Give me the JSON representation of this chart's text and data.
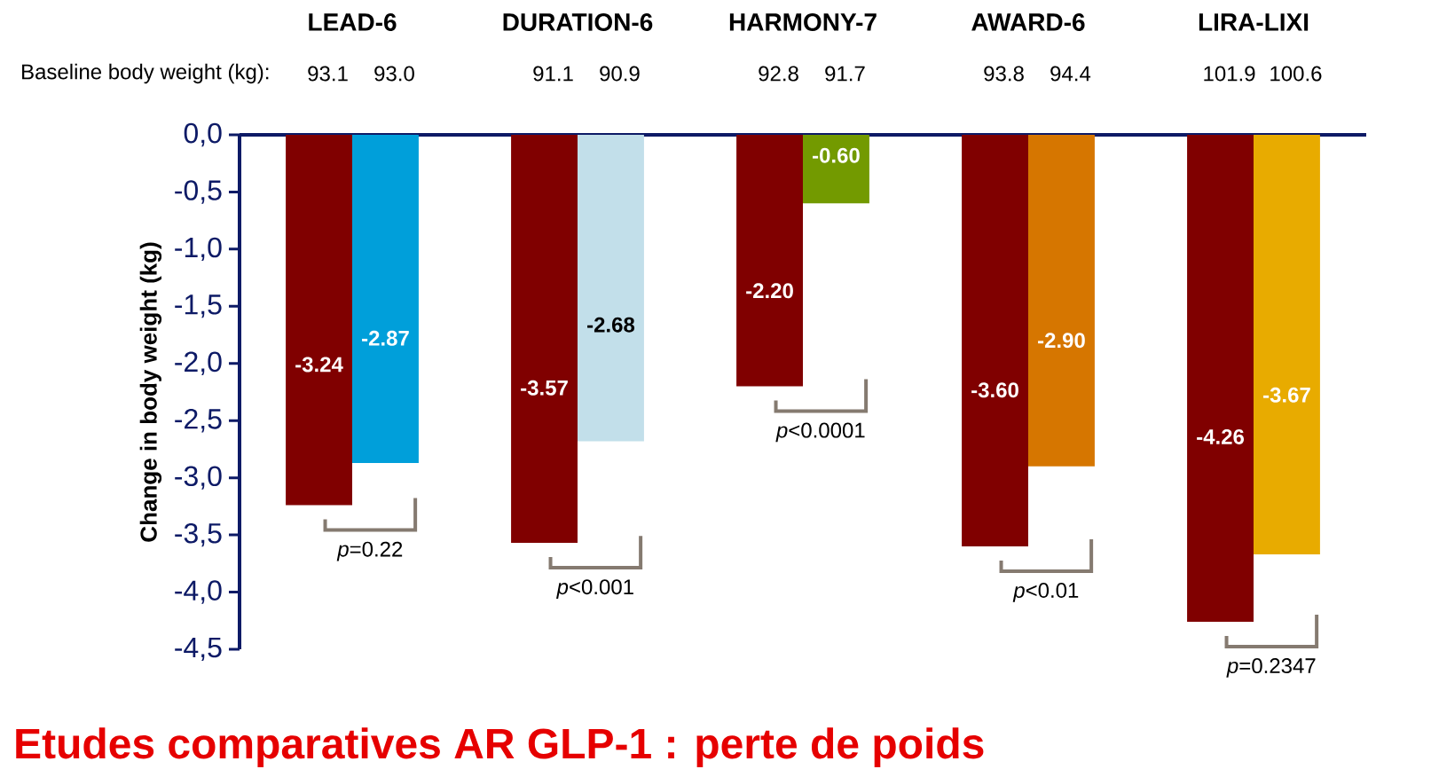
{
  "chart_data": {
    "type": "bar",
    "title": "Etudes comparatives AR GLP-1 : perte de poids",
    "ylabel": "Change in body weight (kg)",
    "categories": [
      "LEAD-6",
      "DURATION-6",
      "HARMONY-7",
      "AWARD-6",
      "LIRA-LIXI"
    ],
    "series": [
      {
        "color": "#800000",
        "values": [
          -3.24,
          -3.57,
          -2.2,
          -3.6,
          -4.26
        ],
        "value_labels": [
          "-3.24",
          "-3.57",
          "-2.20",
          "-3.60",
          "-4.26"
        ]
      },
      {
        "colors": [
          "#009fda",
          "#c2dfea",
          "#739a00",
          "#d67600",
          "#e8ab00"
        ],
        "values": [
          -2.87,
          -2.68,
          -0.6,
          -2.9,
          -3.67
        ],
        "value_labels": [
          "-2.87",
          "-2.68",
          "-0.60",
          "-2.90",
          "-3.67"
        ]
      }
    ],
    "ylim": [
      -4.5,
      0
    ],
    "yticks": [
      {
        "value": -4.5,
        "label": "-4,5"
      },
      {
        "value": -4.0,
        "label": "-4,0"
      },
      {
        "value": -3.5,
        "label": "-3,5"
      },
      {
        "value": -3.0,
        "label": "-3,0"
      },
      {
        "value": -2.5,
        "label": "-2,5"
      },
      {
        "value": -2.0,
        "label": "-2,0"
      },
      {
        "value": -1.5,
        "label": "-1,5"
      },
      {
        "value": -1.0,
        "label": "-1,0"
      },
      {
        "value": -0.5,
        "label": "-0,5"
      },
      {
        "value": 0,
        "label": "0,0"
      }
    ],
    "annotations": [
      "Baseline body weight (kg):",
      "93.1",
      "93.0",
      "91.1",
      "90.9",
      "92.8",
      "91.7",
      "93.8",
      "94.4",
      "101.9",
      "100.6",
      "*p*=0.22",
      "*p*<0.001",
      "*p*<0.0001",
      "*p*<0.01",
      "*p*=0.2347"
    ]
  }
}
